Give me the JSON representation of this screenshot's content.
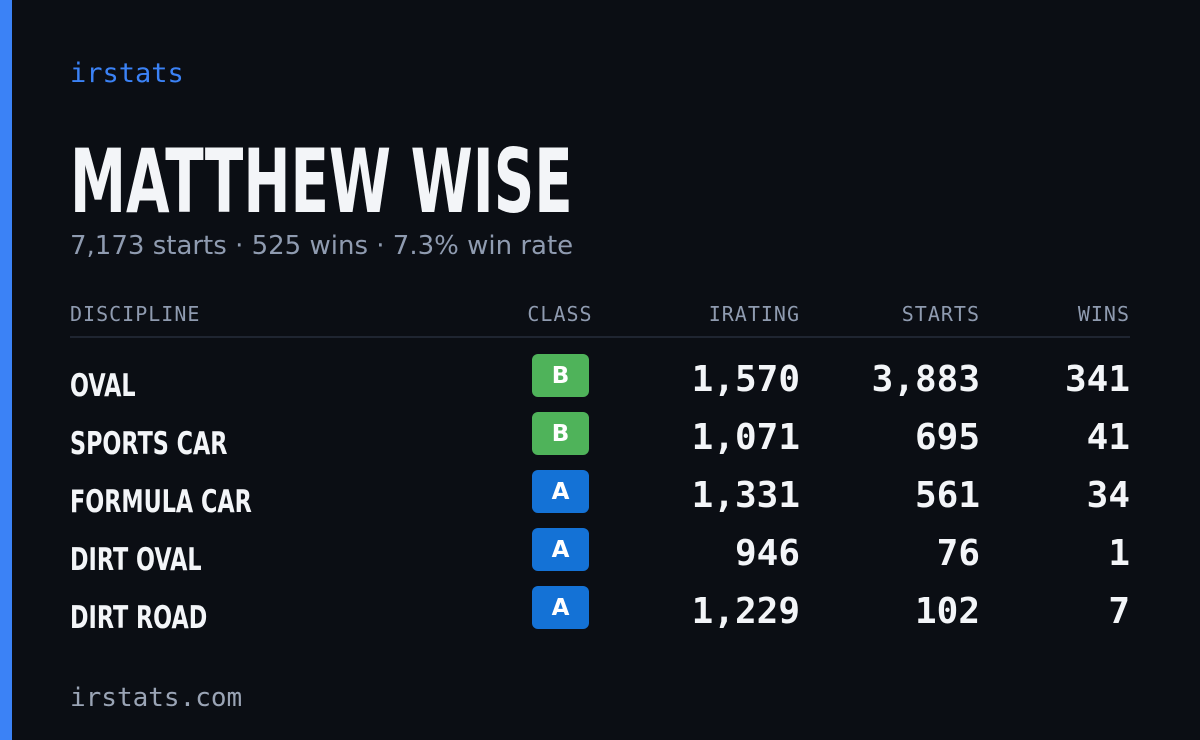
{
  "brand": "irstats",
  "title": "MATTHEW WISE",
  "subtitle": "7,173 starts · 525 wins · 7.3% win rate",
  "table": {
    "headers": [
      "DISCIPLINE",
      "CLASS",
      "IRATING",
      "STARTS",
      "WINS"
    ],
    "rows": [
      {
        "discipline": "OVAL",
        "class": "B",
        "class_color": "#4fb35a",
        "irating": "1,570",
        "starts": "3,883",
        "wins": "341"
      },
      {
        "discipline": "SPORTS CAR",
        "class": "B",
        "class_color": "#4fb35a",
        "irating": "1,071",
        "starts": "695",
        "wins": "41"
      },
      {
        "discipline": "FORMULA CAR",
        "class": "A",
        "class_color": "#1472d6",
        "irating": "1,331",
        "starts": "561",
        "wins": "34"
      },
      {
        "discipline": "DIRT OVAL",
        "class": "A",
        "class_color": "#1472d6",
        "irating": "946",
        "starts": "76",
        "wins": "1"
      },
      {
        "discipline": "DIRT ROAD",
        "class": "A",
        "class_color": "#1472d6",
        "irating": "1,229",
        "starts": "102",
        "wins": "7"
      }
    ]
  },
  "footer": "irstats.com"
}
